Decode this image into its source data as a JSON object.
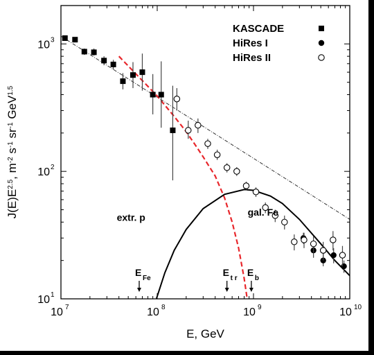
{
  "chart_data": {
    "type": "scatter",
    "xlabel": "E, GeV",
    "ylabel": "J(E)E^2.5, m^-2 s^-1 sr^-1 GeV^1.5",
    "x_scale": "log",
    "y_scale": "log",
    "xlim": [
      10000000.0,
      10000000000.0
    ],
    "ylim": [
      10,
      2000
    ],
    "x_ticks": [
      {
        "value": 10000000.0,
        "base": "10",
        "exp": "7"
      },
      {
        "value": 100000000.0,
        "base": "10",
        "exp": "8"
      },
      {
        "value": 1000000000.0,
        "base": "10",
        "exp": "9"
      },
      {
        "value": 10000000000.0,
        "base": "10",
        "exp": "10"
      }
    ],
    "y_ticks": [
      {
        "value": 10,
        "base": "10",
        "exp": "1"
      },
      {
        "value": 100,
        "base": "10",
        "exp": "2"
      },
      {
        "value": 1000,
        "base": "10",
        "exp": "3"
      }
    ],
    "legend_position": "top-right",
    "series": [
      {
        "name": "KASCADE",
        "marker": "filled-square",
        "points": [
          {
            "x": 11000000.0,
            "y": 1110,
            "ylo": 1060,
            "yhi": 1160
          },
          {
            "x": 14000000.0,
            "y": 1080,
            "ylo": 1030,
            "yhi": 1130
          },
          {
            "x": 17500000.0,
            "y": 870,
            "ylo": 820,
            "yhi": 920
          },
          {
            "x": 22000000.0,
            "y": 860,
            "ylo": 810,
            "yhi": 920
          },
          {
            "x": 28000000.0,
            "y": 740,
            "ylo": 680,
            "yhi": 800
          },
          {
            "x": 35000000.0,
            "y": 690,
            "ylo": 630,
            "yhi": 750
          },
          {
            "x": 44000000.0,
            "y": 510,
            "ylo": 440,
            "yhi": 590
          },
          {
            "x": 56000000.0,
            "y": 570,
            "ylo": 450,
            "yhi": 720
          },
          {
            "x": 70000000.0,
            "y": 600,
            "ylo": 430,
            "yhi": 840
          },
          {
            "x": 90000000.0,
            "y": 400,
            "ylo": 280,
            "yhi": 580
          },
          {
            "x": 110000000.0,
            "y": 400,
            "ylo": 220,
            "yhi": 730
          },
          {
            "x": 145000000.0,
            "y": 210,
            "ylo": 85,
            "yhi": 470
          }
        ]
      },
      {
        "name": "HiRes I",
        "marker": "filled-circle",
        "points": [
          {
            "x": 3300000000.0,
            "y": 30,
            "ylo": 27,
            "yhi": 33
          },
          {
            "x": 4200000000.0,
            "y": 24,
            "ylo": 21,
            "yhi": 27
          },
          {
            "x": 5300000000.0,
            "y": 20,
            "ylo": 18,
            "yhi": 23
          },
          {
            "x": 6800000000.0,
            "y": 22,
            "ylo": 19,
            "yhi": 25
          },
          {
            "x": 8700000000.0,
            "y": 18,
            "ylo": 16,
            "yhi": 20
          }
        ]
      },
      {
        "name": "HiRes II",
        "marker": "open-circle",
        "points": [
          {
            "x": 160000000.0,
            "y": 370,
            "ylo": 300,
            "yhi": 450
          },
          {
            "x": 210000000.0,
            "y": 210,
            "ylo": 180,
            "yhi": 250
          },
          {
            "x": 265000000.0,
            "y": 230,
            "ylo": 200,
            "yhi": 260
          },
          {
            "x": 335000000.0,
            "y": 165,
            "ylo": 150,
            "yhi": 180
          },
          {
            "x": 420000000.0,
            "y": 135,
            "ylo": 123,
            "yhi": 148
          },
          {
            "x": 530000000.0,
            "y": 107,
            "ylo": 98,
            "yhi": 116
          },
          {
            "x": 670000000.0,
            "y": 100,
            "ylo": 92,
            "yhi": 108
          },
          {
            "x": 840000000.0,
            "y": 77,
            "ylo": 71,
            "yhi": 83
          },
          {
            "x": 1060000000.0,
            "y": 69,
            "ylo": 63,
            "yhi": 75
          },
          {
            "x": 1330000000.0,
            "y": 52,
            "ylo": 47,
            "yhi": 57
          },
          {
            "x": 1680000000.0,
            "y": 45,
            "ylo": 40,
            "yhi": 50
          },
          {
            "x": 2100000000.0,
            "y": 40,
            "ylo": 35,
            "yhi": 45
          },
          {
            "x": 2650000000.0,
            "y": 28,
            "ylo": 24,
            "yhi": 32
          },
          {
            "x": 3350000000.0,
            "y": 29,
            "ylo": 25,
            "yhi": 33
          },
          {
            "x": 4200000000.0,
            "y": 27,
            "ylo": 23,
            "yhi": 31
          },
          {
            "x": 5300000000.0,
            "y": 24,
            "ylo": 20,
            "yhi": 28
          },
          {
            "x": 6700000000.0,
            "y": 29,
            "ylo": 24,
            "yhi": 34
          },
          {
            "x": 8400000000.0,
            "y": 22,
            "ylo": 18,
            "yhi": 26
          }
        ]
      }
    ],
    "lines": [
      {
        "id": "power-law-fit",
        "style": "dash-dot",
        "color": "#333333",
        "points": [
          [
            10000000.0,
            1150
          ],
          [
            10000000000.0,
            42
          ]
        ]
      },
      {
        "id": "extragalactic-proton",
        "style": "dashed",
        "color": "#e8262b",
        "points": [
          [
            40000000.0,
            800
          ],
          [
            100000000.0,
            390
          ],
          [
            150000000.0,
            270
          ],
          [
            200000000.0,
            205
          ],
          [
            250000000.0,
            160
          ],
          [
            300000000.0,
            130
          ],
          [
            400000000.0,
            92
          ],
          [
            500000000.0,
            62
          ],
          [
            600000000.0,
            40
          ],
          [
            700000000.0,
            25
          ],
          [
            800000000.0,
            14.5
          ],
          [
            860000000.0,
            10
          ]
        ]
      },
      {
        "id": "galactic-iron",
        "style": "solid",
        "color": "#000000",
        "points": [
          [
            98000000.0,
            10
          ],
          [
            120000000.0,
            16
          ],
          [
            150000000.0,
            24
          ],
          [
            200000000.0,
            35
          ],
          [
            300000000.0,
            51
          ],
          [
            500000000.0,
            66
          ],
          [
            800000000.0,
            72
          ],
          [
            1000000000.0,
            71
          ],
          [
            1500000000.0,
            64
          ],
          [
            2000000000.0,
            56
          ],
          [
            3000000000.0,
            42
          ],
          [
            5000000000.0,
            27
          ],
          [
            7000000000.0,
            20
          ],
          [
            10000000000.0,
            15.2
          ]
        ]
      }
    ],
    "annotations": [
      {
        "id": "extr-p",
        "text": "extr. p",
        "x": 38000000.0,
        "y": 41
      },
      {
        "id": "gal-fe",
        "text": "gal. Fe",
        "x": 870000000.0,
        "y": 45
      }
    ],
    "arrows": [
      {
        "id": "e-fe",
        "main": "E",
        "sub": "Fe",
        "x": 65000000.0
      },
      {
        "id": "e-tr",
        "main": "E",
        "sub": "t r",
        "x": 530000000.0
      },
      {
        "id": "e-b",
        "main": "E",
        "sub": "b",
        "x": 950000000.0
      }
    ],
    "legend": [
      {
        "label": "KASCADE",
        "marker": "filled-square"
      },
      {
        "label": "HiRes I",
        "marker": "filled-circle"
      },
      {
        "label": "HiRes II",
        "marker": "open-circle"
      }
    ]
  }
}
